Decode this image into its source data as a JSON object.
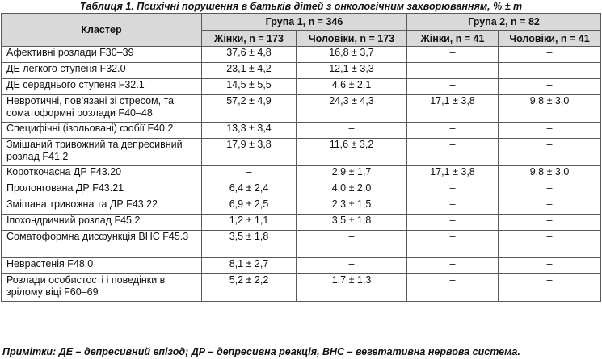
{
  "title": "Таблиця 1. Психічні порушення в батьків дітей з онкологічним захворюванням, % ± m",
  "header": {
    "cluster": "Кластер",
    "group1": "Група 1, n = 346",
    "group2": "Група 2, n = 82",
    "g1_women": "Жінки, n = 173",
    "g1_men": "Чоловіки, n = 173",
    "g2_women": "Жінки, n = 41",
    "g2_men": "Чоловіки, n = 41"
  },
  "rows": [
    {
      "label": "Афективні розлади F30–39",
      "g1w": "37,6 ± 4,8",
      "g1m": "16,8 ± 3,7",
      "g2w": "–",
      "g2m": "–"
    },
    {
      "label": "ДЕ легкого ступеня F32.0",
      "g1w": "23,1 ± 4,2",
      "g1m": "12,1 ± 3,3",
      "g2w": "–",
      "g2m": "–"
    },
    {
      "label": "ДЕ середнього ступеня F32.1",
      "g1w": "14,5 ± 5,5",
      "g1m": "4,6 ± 2,1",
      "g2w": "–",
      "g2m": "–"
    },
    {
      "label": "Невротичні, пов’язані зі стресом, та соматоформні розлади F40–48",
      "g1w": "57,2 ± 4,9",
      "g1m": "24,3 ± 4,3",
      "g2w": "17,1 ± 3,8",
      "g2m": "9,8 ± 3,0"
    },
    {
      "label": "Специфічні (ізольовані) фобії F40.2",
      "g1w": "13,3 ± 3,4",
      "g1m": "–",
      "g2w": "–",
      "g2m": "–"
    },
    {
      "label": "Змішаний тривожний та депресивний розлад F41.2",
      "g1w": "17,9 ± 3,8",
      "g1m": "11,6 ± 3,2",
      "g2w": "–",
      "g2m": "–"
    },
    {
      "label": "Короткочасна ДР F43.20",
      "g1w": "–",
      "g1m": "2,9 ± 1,7",
      "g2w": "17,1 ± 3,8",
      "g2m": "9,8 ± 3,0"
    },
    {
      "label": "Пролонгована ДР F43.21",
      "g1w": "6,4 ± 2,4",
      "g1m": "4,0 ± 2,0",
      "g2w": "–",
      "g2m": "–"
    },
    {
      "label": "Змішана тривожна та ДР F43.22",
      "g1w": "6,9 ± 2,5",
      "g1m": "2,3 ± 1,5",
      "g2w": "–",
      "g2m": "–"
    },
    {
      "label": "Іпохондричний розлад F45.2",
      "g1w": "1,2 ± 1,1",
      "g1m": "3,5 ± 1,8",
      "g2w": "–",
      "g2m": "–"
    },
    {
      "label": "Соматоформна дисфункція ВНС F45.3",
      "g1w": "3,5 ± 1,8",
      "g1m": "–",
      "g2w": "–",
      "g2m": "–"
    },
    {
      "label": "Неврастенія F48.0",
      "g1w": "8,1 ± 2,7",
      "g1m": "–",
      "g2w": "–",
      "g2m": "–"
    },
    {
      "label": "Розлади особистості і поведінки в зрілому віці F60–69",
      "g1w": "5,2 ± 2,2",
      "g1m": "1,7 ± 1,3",
      "g2w": "–",
      "g2m": "–"
    }
  ],
  "note": "Примітки: ДЕ – депресивний епізод; ДР – депресивна реакція, ВНС – вегетативна нервова система."
}
